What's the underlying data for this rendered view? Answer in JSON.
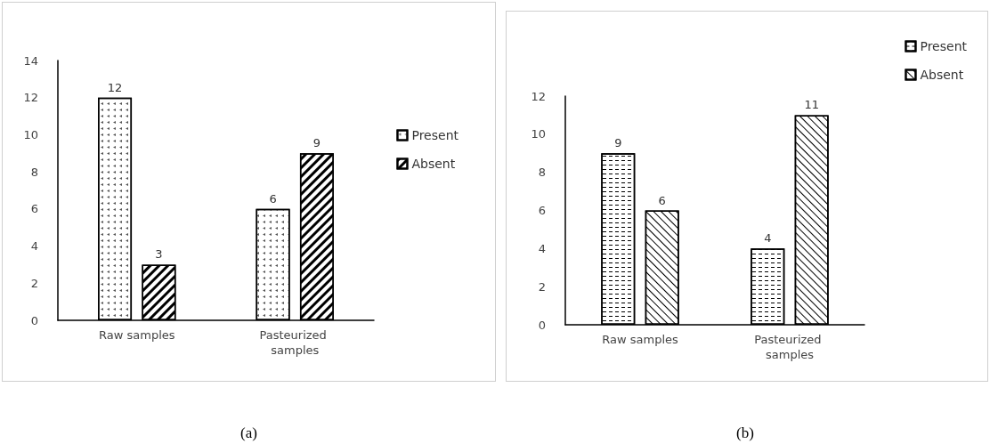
{
  "chart_data": [
    {
      "type": "bar",
      "categories": [
        "Raw samples",
        "Pasteurized samples"
      ],
      "series": [
        {
          "name": "Present",
          "color": "#ffffff",
          "values": [
            12,
            6
          ]
        },
        {
          "name": "Absent",
          "color": "#ffffff",
          "values": [
            3,
            9
          ]
        }
      ],
      "ylim": [
        0,
        14
      ],
      "yticks": [
        0,
        2,
        4,
        6,
        8,
        10,
        12,
        14
      ],
      "grid": false,
      "legend": "right",
      "data_labels": true,
      "annotations": [
        "(a)"
      ]
    },
    {
      "type": "bar",
      "categories": [
        "Raw samples",
        "Pasteurized samples"
      ],
      "series": [
        {
          "name": "Present",
          "color": "#ffffff",
          "values": [
            9,
            4
          ]
        },
        {
          "name": "Absent",
          "color": "#ffffff",
          "values": [
            6,
            11
          ]
        }
      ],
      "ylim": [
        0,
        12
      ],
      "yticks": [
        0,
        2,
        4,
        6,
        8,
        10,
        12
      ],
      "grid": false,
      "legend": "top right",
      "data_labels": true,
      "annotations": [
        "(b)"
      ]
    }
  ]
}
